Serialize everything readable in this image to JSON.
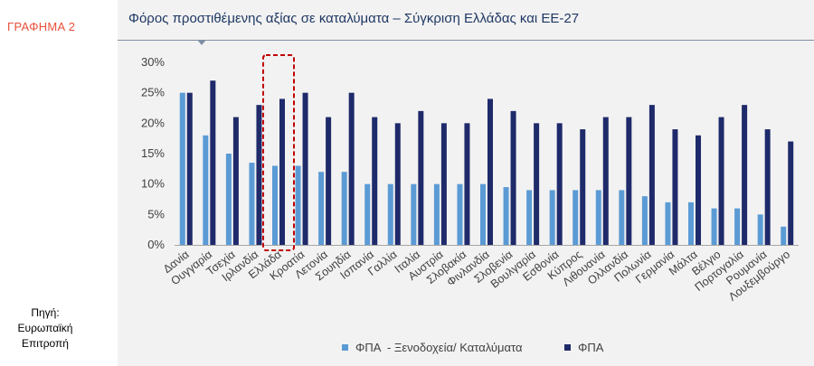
{
  "sidebar": {
    "label": "ΓΡΑΦΗΜΑ 2",
    "source_lines": [
      "Πηγή:",
      "Ευρωπαϊκή",
      "Επιτροπή"
    ]
  },
  "colors": {
    "series_light": "#5b9bd5",
    "series_dark": "#1f2a6b",
    "highlight_border": "#c00000",
    "title": "#1f3864"
  },
  "chart_data": {
    "type": "bar",
    "title": "Φόρος προστιθέμενης αξίας σε καταλύματα – Σύγκριση Ελλάδας και ΕΕ-27",
    "xlabel": "",
    "ylabel": "",
    "ylim": [
      0,
      30
    ],
    "yticks": [
      "0%",
      "5%",
      "10%",
      "15%",
      "20%",
      "25%",
      "30%"
    ],
    "grid": false,
    "legend_position": "bottom",
    "highlight_category": "Ελλάδα",
    "categories": [
      "Δανία",
      "Ουγγαρία",
      "Τσεχία",
      "Ιρλανδία",
      "Ελλάδα",
      "Κροατία",
      "Λετονία",
      "Σουηδία",
      "Ισπανία",
      "Γαλλία",
      "Ιταλία",
      "Αυστρία",
      "Σλοβακία",
      "Φινλανδία",
      "Σλοβενία",
      "Βουλγαρία",
      "Εσθονία",
      "Κύπρος",
      "Λιθουανία",
      "Ολλανδία",
      "Πολωνία",
      "Γερμανία",
      "Μάλτα",
      "Βέλγιο",
      "Πορτογαλία",
      "Ρουμανία",
      "Λουξεμβούργο"
    ],
    "series": [
      {
        "name": "ΦΠΑ  - Ξενοδοχεία/ Καταλύματα",
        "values": [
          25,
          18,
          15,
          13.5,
          13,
          13,
          12,
          12,
          10,
          10,
          10,
          10,
          10,
          10,
          9.5,
          9,
          9,
          9,
          9,
          9,
          8,
          7,
          7,
          6,
          6,
          5,
          3
        ]
      },
      {
        "name": "ΦΠΑ",
        "values": [
          25,
          27,
          21,
          23,
          24,
          25,
          21,
          25,
          21,
          20,
          22,
          20,
          20,
          24,
          22,
          20,
          20,
          19,
          21,
          21,
          23,
          19,
          18,
          21,
          23,
          19,
          17
        ]
      }
    ]
  }
}
